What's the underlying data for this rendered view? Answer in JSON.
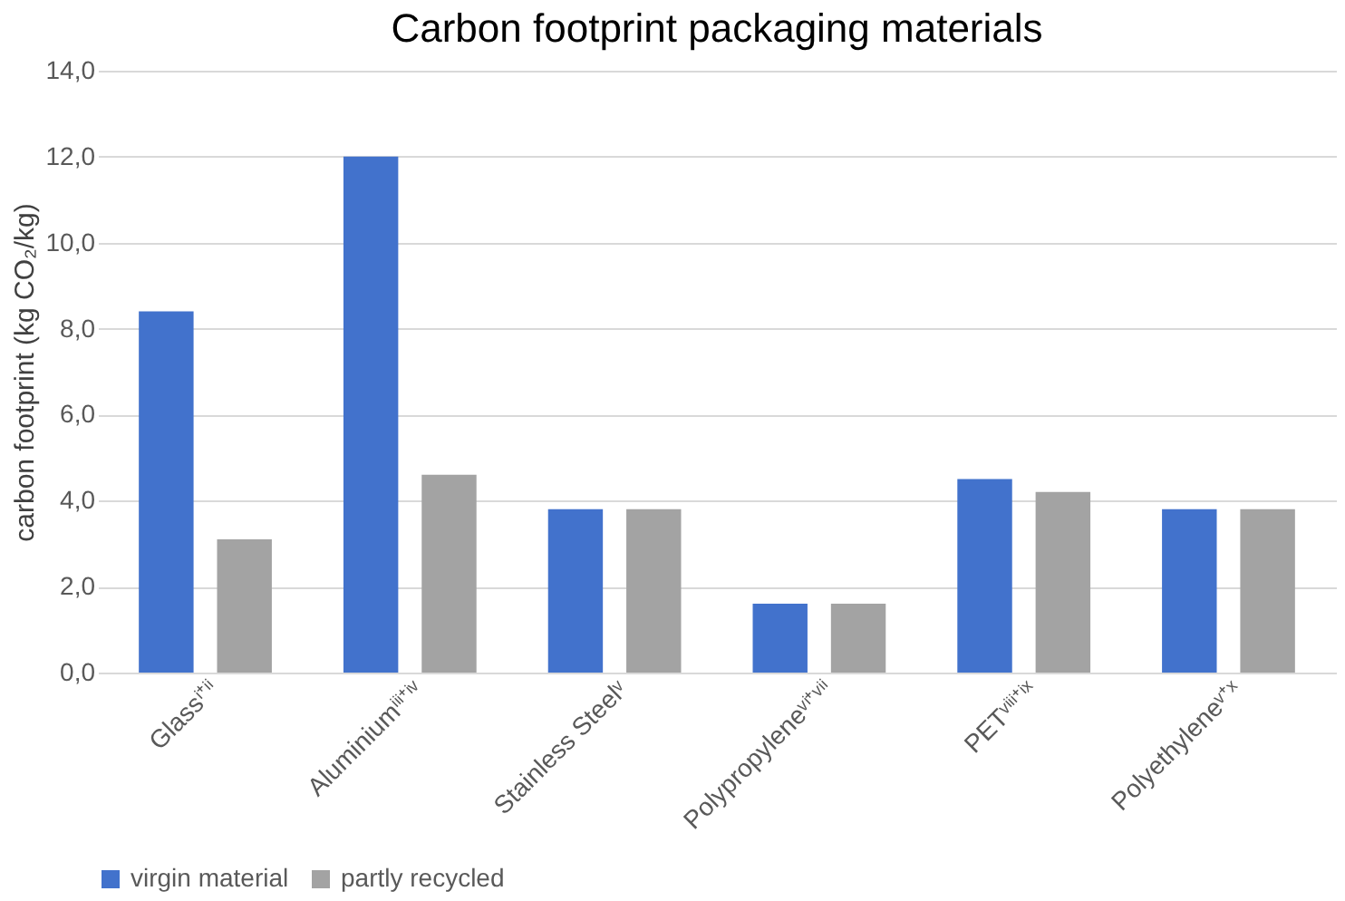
{
  "chart_data": {
    "type": "bar",
    "title": "Carbon footprint packaging materials",
    "ylabel": "carbon footprint (kg CO₂/kg)",
    "categories": [
      "Glassⁱ⁺ⁱⁱ",
      "Aluminiumⁱⁱⁱ⁺ⁱᵛ",
      "Stainless Steelᵛ",
      "Polypropyleneᵛⁱ⁺ᵛⁱⁱ",
      "PETᵛⁱⁱⁱ⁺ⁱˣ",
      "Polyethyleneᵛ⁺ˣ"
    ],
    "series": [
      {
        "name": "virgin material",
        "color": "#4272cc",
        "values": [
          8.4,
          12.0,
          3.8,
          1.6,
          4.5,
          3.8
        ]
      },
      {
        "name": "partly recycled",
        "color": "#a3a3a3",
        "values": [
          3.1,
          4.6,
          3.8,
          1.6,
          4.2,
          3.8
        ]
      }
    ],
    "ylim": [
      0,
      14
    ],
    "yticks": [
      {
        "value": 0,
        "label": "0,0"
      },
      {
        "value": 2,
        "label": "2,0"
      },
      {
        "value": 4,
        "label": "4,0"
      },
      {
        "value": 6,
        "label": "6,0"
      },
      {
        "value": 8,
        "label": "8,0"
      },
      {
        "value": 10,
        "label": "10,0"
      },
      {
        "value": 12,
        "label": "12,0"
      },
      {
        "value": 14,
        "label": "14,0"
      }
    ],
    "grid": "y",
    "legend": "bottom"
  }
}
